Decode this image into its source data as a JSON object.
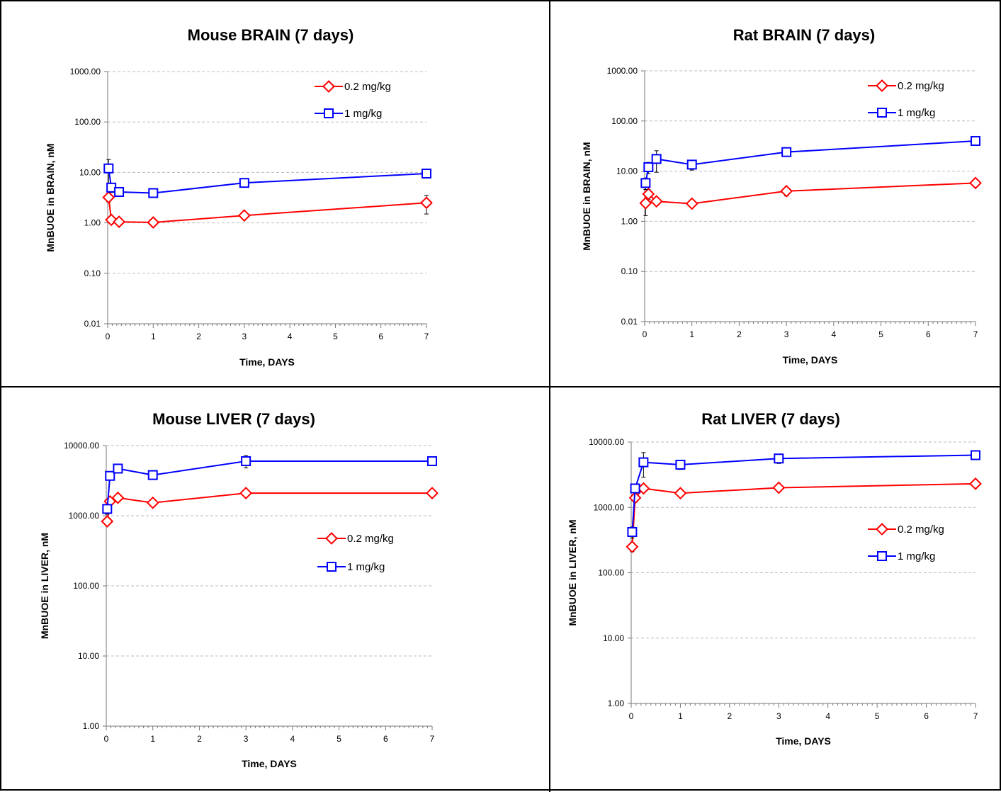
{
  "chart_data": [
    {
      "type": "line",
      "title": "Mouse BRAIN (7 days)",
      "xlabel": "Time, DAYS",
      "ylabel": "MnBUOE in BRAIN, nM",
      "xlim": [
        0,
        7
      ],
      "ylim": [
        0.01,
        1000
      ],
      "yscale": "log",
      "xticks": [
        "0",
        "1",
        "2",
        "3",
        "4",
        "5",
        "6",
        "7"
      ],
      "yticks": [
        "1000.00",
        "100.00",
        "10.00",
        "1.00",
        "0.10",
        "0.01"
      ],
      "grid": "horizontal dashed",
      "legend": "top-right",
      "series": [
        {
          "name": "0.2 mg/kg",
          "color": "#ff0000",
          "marker": "diamond",
          "x": [
            0.02,
            0.08,
            0.25,
            1,
            3,
            7
          ],
          "y": [
            3.2,
            1.15,
            1.05,
            1.02,
            1.4,
            2.5
          ],
          "err": [
            0.6,
            0.1,
            0.1,
            0.1,
            0.2,
            1.0
          ]
        },
        {
          "name": "1 mg/kg",
          "color": "#0000ff",
          "marker": "square",
          "x": [
            0.02,
            0.08,
            0.25,
            1,
            3,
            7
          ],
          "y": [
            12,
            5,
            4.1,
            3.9,
            6.2,
            9.5
          ],
          "err": [
            6,
            1,
            0.5,
            0.4,
            0.8,
            1.0
          ]
        }
      ]
    },
    {
      "type": "line",
      "title": "Rat BRAIN (7 days)",
      "xlabel": "Time, DAYS",
      "ylabel": "MnBUOE in BRAIN, nM",
      "xlim": [
        0,
        7
      ],
      "ylim": [
        0.01,
        1000
      ],
      "yscale": "log",
      "xticks": [
        "0",
        "1",
        "2",
        "3",
        "4",
        "5",
        "6",
        "7"
      ],
      "yticks": [
        "1000.00",
        "100.00",
        "10.00",
        "1.00",
        "0.10",
        "0.01"
      ],
      "grid": "horizontal dashed",
      "legend": "top-right",
      "series": [
        {
          "name": "0.2 mg/kg",
          "color": "#ff0000",
          "marker": "diamond",
          "x": [
            0.02,
            0.08,
            0.25,
            1,
            3,
            7
          ],
          "y": [
            2.3,
            3.5,
            2.5,
            2.25,
            4.0,
            5.8
          ],
          "err": [
            1.0,
            0.8,
            0.4,
            0.3,
            0.8,
            0.6
          ]
        },
        {
          "name": "1 mg/kg",
          "color": "#0000ff",
          "marker": "square",
          "x": [
            0.02,
            0.08,
            0.25,
            1,
            3,
            7
          ],
          "y": [
            5.8,
            12,
            17.5,
            13.5,
            24,
            40
          ],
          "err": [
            1.5,
            3,
            8,
            3,
            4,
            5
          ]
        }
      ]
    },
    {
      "type": "line",
      "title": "Mouse LIVER (7 days)",
      "xlabel": "Time, DAYS",
      "ylabel": "MnBUOE in LIVER, nM",
      "xlim": [
        0,
        7
      ],
      "ylim": [
        1,
        10000
      ],
      "yscale": "log",
      "xticks": [
        "0",
        "1",
        "2",
        "3",
        "4",
        "5",
        "6",
        "7"
      ],
      "yticks": [
        "10000.00",
        "1000.00",
        "100.00",
        "10.00",
        "1.00"
      ],
      "grid": "horizontal dashed",
      "legend": "middle-right",
      "series": [
        {
          "name": "0.2 mg/kg",
          "color": "#ff0000",
          "marker": "diamond",
          "x": [
            0.02,
            0.08,
            0.25,
            1,
            3,
            7
          ],
          "y": [
            830,
            1600,
            1800,
            1530,
            2100,
            2100
          ],
          "err": [
            80,
            150,
            150,
            150,
            250,
            150
          ]
        },
        {
          "name": "1 mg/kg",
          "color": "#0000ff",
          "marker": "square",
          "x": [
            0.02,
            0.08,
            0.25,
            1,
            3,
            7
          ],
          "y": [
            1250,
            3700,
            4700,
            3800,
            6000,
            6000
          ],
          "err": [
            200,
            400,
            500,
            400,
            1200,
            500
          ]
        }
      ]
    },
    {
      "type": "line",
      "title": "Rat LIVER (7 days)",
      "xlabel": "Time, DAYS",
      "ylabel": "MnBUOE in LIVER, nM",
      "xlim": [
        0,
        7
      ],
      "ylim": [
        1,
        10000
      ],
      "yscale": "log",
      "xticks": [
        "0",
        "1",
        "2",
        "3",
        "4",
        "5",
        "6",
        "7"
      ],
      "yticks": [
        "10000.00",
        "1000.00",
        "100.00",
        "10.00",
        "1.00"
      ],
      "grid": "horizontal dashed",
      "legend": "middle-right",
      "series": [
        {
          "name": "0.2 mg/kg",
          "color": "#ff0000",
          "marker": "diamond",
          "x": [
            0.02,
            0.08,
            0.25,
            1,
            3,
            7
          ],
          "y": [
            250,
            1400,
            1950,
            1650,
            2000,
            2300
          ],
          "err": [
            40,
            200,
            250,
            200,
            200,
            200
          ]
        },
        {
          "name": "1 mg/kg",
          "color": "#0000ff",
          "marker": "square",
          "x": [
            0.02,
            0.08,
            0.25,
            1,
            3,
            7
          ],
          "y": [
            420,
            1950,
            4900,
            4500,
            5600,
            6300
          ],
          "err": [
            80,
            300,
            2000,
            700,
            900,
            600
          ]
        }
      ]
    }
  ]
}
